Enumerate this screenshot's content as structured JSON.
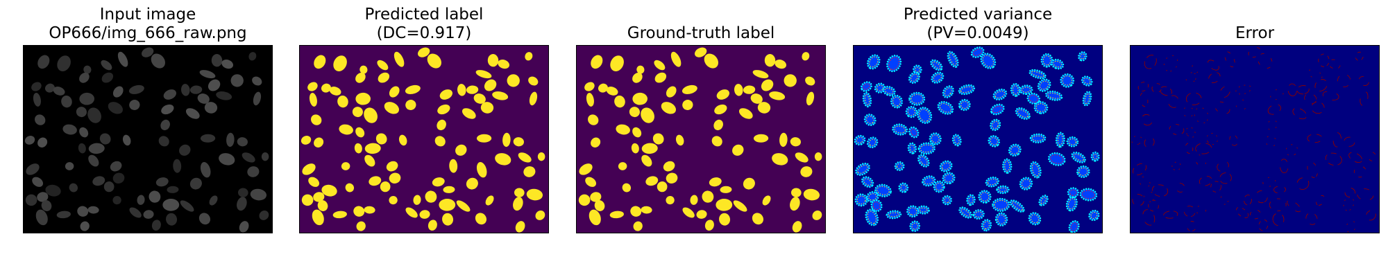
{
  "panels": [
    {
      "name": "input-image",
      "title_line1": "Input image",
      "title_line2": "OP666/img_666_raw.png",
      "background": "#000000",
      "blob_color": "#3a3a3a",
      "style": "grayscale"
    },
    {
      "name": "predicted-label",
      "title_line1": "Predicted label",
      "title_line2": "(DC=0.917)",
      "background": "#440154",
      "blob_color": "#fde725",
      "style": "mask"
    },
    {
      "name": "ground-truth-label",
      "title_line1": "",
      "title_line2": "Ground-truth label",
      "background": "#440154",
      "blob_color": "#fde725",
      "style": "mask"
    },
    {
      "name": "predicted-variance",
      "title_line1": "Predicted variance",
      "title_line2": "(PV=0.0049)",
      "background": "#000080",
      "blob_color": "#00ffff",
      "ring_color": "#ffff00",
      "hot_color": "#ff3000",
      "style": "variance"
    },
    {
      "name": "error",
      "title_line1": "",
      "title_line2": "Error",
      "background": "#00007f",
      "blob_color": "#8b0000",
      "style": "error"
    }
  ]
}
